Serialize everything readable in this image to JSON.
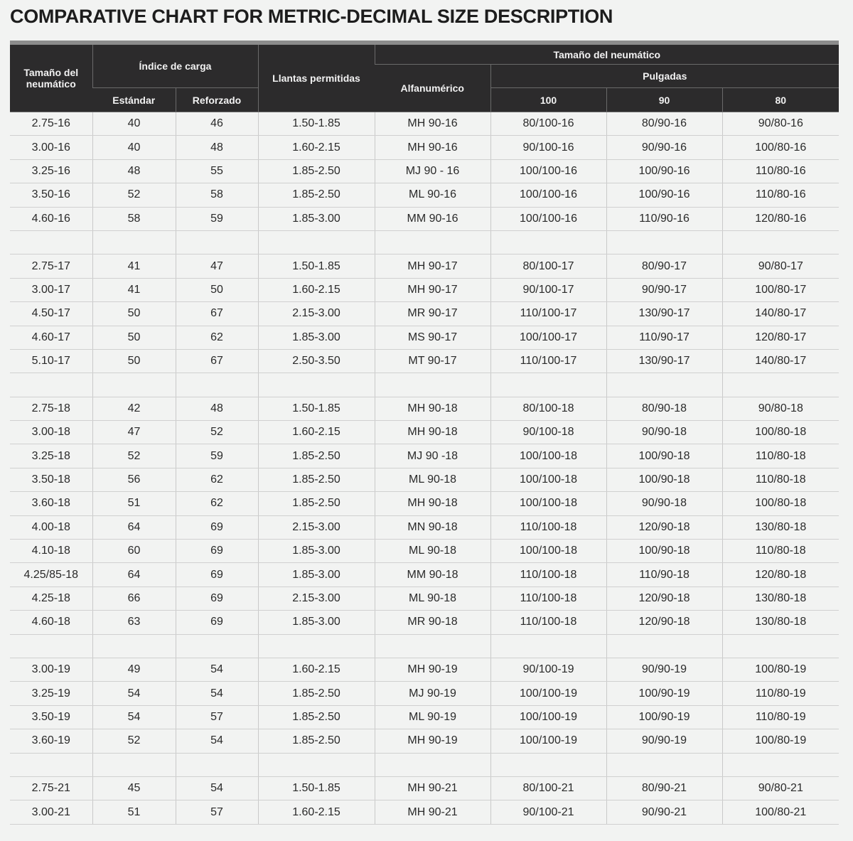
{
  "title": "COMPARATIVE CHART FOR METRIC-DECIMAL SIZE DESCRIPTION",
  "headers": {
    "tire_size": "Tamaño del neumático",
    "load_index": "Índice de carga",
    "standard": "Estándar",
    "reinforced": "Reforzado",
    "rims": "Llantas permitidas",
    "tire_size_group": "Tamaño del neumático",
    "alphanumeric": "Alfanumérico",
    "inches": "Pulgadas",
    "c100": "100",
    "c90": "90",
    "c80": "80"
  },
  "groups": [
    [
      [
        "2.75-16",
        "40",
        "46",
        "1.50-1.85",
        "MH 90-16",
        "80/100-16",
        "80/90-16",
        "90/80-16"
      ],
      [
        "3.00-16",
        "40",
        "48",
        "1.60-2.15",
        "MH 90-16",
        "90/100-16",
        "90/90-16",
        "100/80-16"
      ],
      [
        "3.25-16",
        "48",
        "55",
        "1.85-2.50",
        "MJ 90 - 16",
        "100/100-16",
        "100/90-16",
        "110/80-16"
      ],
      [
        "3.50-16",
        "52",
        "58",
        "1.85-2.50",
        "ML 90-16",
        "100/100-16",
        "100/90-16",
        "110/80-16"
      ],
      [
        "4.60-16",
        "58",
        "59",
        "1.85-3.00",
        "MM 90-16",
        "100/100-16",
        "110/90-16",
        "120/80-16"
      ]
    ],
    [
      [
        "2.75-17",
        "41",
        "47",
        "1.50-1.85",
        "MH 90-17",
        "80/100-17",
        "80/90-17",
        "90/80-17"
      ],
      [
        "3.00-17",
        "41",
        "50",
        "1.60-2.15",
        "MH 90-17",
        "90/100-17",
        "90/90-17",
        "100/80-17"
      ],
      [
        "4.50-17",
        "50",
        "67",
        "2.15-3.00",
        "MR 90-17",
        "110/100-17",
        "130/90-17",
        "140/80-17"
      ],
      [
        "4.60-17",
        "50",
        "62",
        "1.85-3.00",
        "MS 90-17",
        "100/100-17",
        "110/90-17",
        "120/80-17"
      ],
      [
        "5.10-17",
        "50",
        "67",
        "2.50-3.50",
        "MT 90-17",
        "110/100-17",
        "130/90-17",
        "140/80-17"
      ]
    ],
    [
      [
        "2.75-18",
        "42",
        "48",
        "1.50-1.85",
        "MH 90-18",
        "80/100-18",
        "80/90-18",
        "90/80-18"
      ],
      [
        "3.00-18",
        "47",
        "52",
        "1.60-2.15",
        "MH 90-18",
        "90/100-18",
        "90/90-18",
        "100/80-18"
      ],
      [
        "3.25-18",
        "52",
        "59",
        "1.85-2.50",
        "MJ 90 -18",
        "100/100-18",
        "100/90-18",
        "110/80-18"
      ],
      [
        "3.50-18",
        "56",
        "62",
        "1.85-2.50",
        "ML 90-18",
        "100/100-18",
        "100/90-18",
        "110/80-18"
      ],
      [
        "3.60-18",
        "51",
        "62",
        "1.85-2.50",
        "MH 90-18",
        "100/100-18",
        "90/90-18",
        "100/80-18"
      ],
      [
        "4.00-18",
        "64",
        "69",
        "2.15-3.00",
        "MN 90-18",
        "110/100-18",
        "120/90-18",
        "130/80-18"
      ],
      [
        "4.10-18",
        "60",
        "69",
        "1.85-3.00",
        "ML 90-18",
        "100/100-18",
        "100/90-18",
        "110/80-18"
      ],
      [
        "4.25/85-18",
        "64",
        "69",
        "1.85-3.00",
        "MM 90-18",
        "110/100-18",
        "110/90-18",
        "120/80-18"
      ],
      [
        "4.25-18",
        "66",
        "69",
        "2.15-3.00",
        "ML 90-18",
        "110/100-18",
        "120/90-18",
        "130/80-18"
      ],
      [
        "4.60-18",
        "63",
        "69",
        "1.85-3.00",
        "MR 90-18",
        "110/100-18",
        "120/90-18",
        "130/80-18"
      ]
    ],
    [
      [
        "3.00-19",
        "49",
        "54",
        "1.60-2.15",
        "MH 90-19",
        "90/100-19",
        "90/90-19",
        "100/80-19"
      ],
      [
        "3.25-19",
        "54",
        "54",
        "1.85-2.50",
        "MJ 90-19",
        "100/100-19",
        "100/90-19",
        "110/80-19"
      ],
      [
        "3.50-19",
        "54",
        "57",
        "1.85-2.50",
        "ML 90-19",
        "100/100-19",
        "100/90-19",
        "110/80-19"
      ],
      [
        "3.60-19",
        "52",
        "54",
        "1.85-2.50",
        "MH 90-19",
        "100/100-19",
        "90/90-19",
        "100/80-19"
      ]
    ],
    [
      [
        "2.75-21",
        "45",
        "54",
        "1.50-1.85",
        "MH 90-21",
        "80/100-21",
        "80/90-21",
        "90/80-21"
      ],
      [
        "3.00-21",
        "51",
        "57",
        "1.60-2.15",
        "MH 90-21",
        "90/100-21",
        "90/90-21",
        "100/80-21"
      ]
    ]
  ]
}
